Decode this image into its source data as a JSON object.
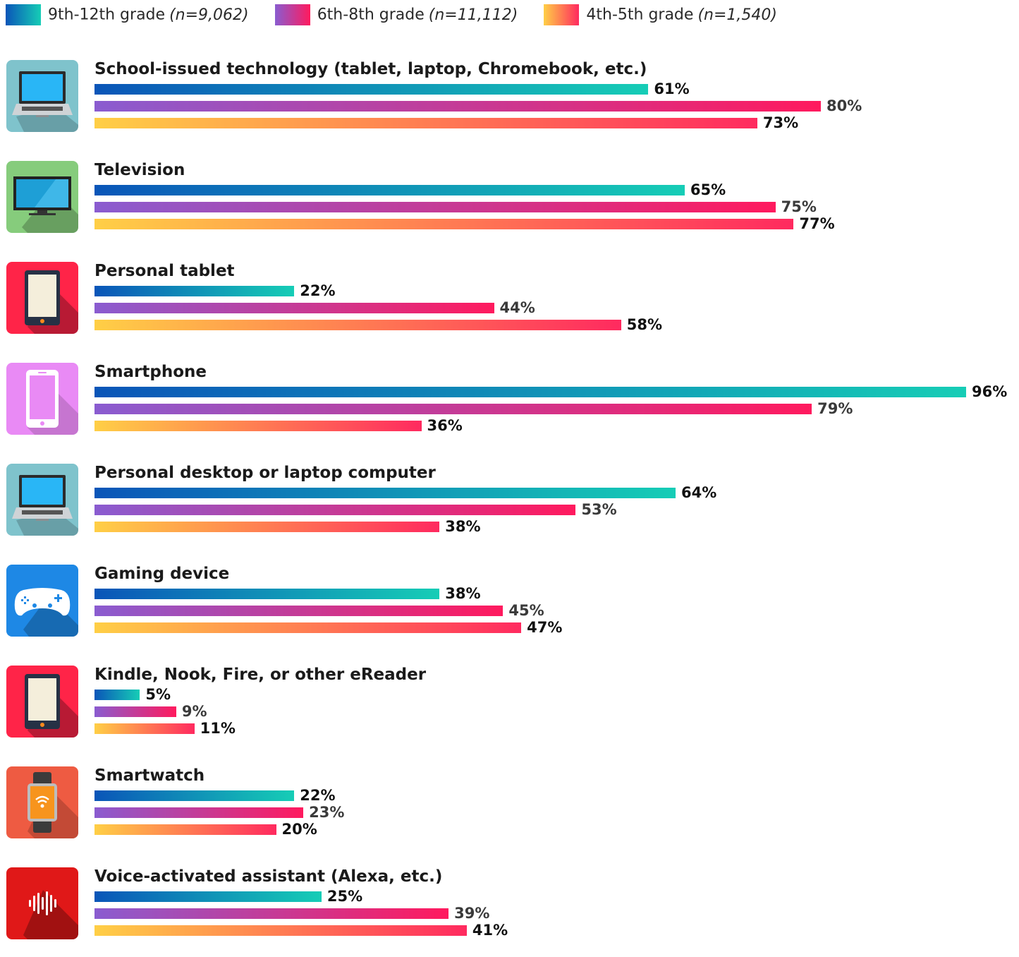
{
  "chart_data": {
    "type": "bar",
    "orientation": "horizontal",
    "categories": [
      "School-issued technology (tablet, laptop, Chromebook, etc.)",
      "Television",
      "Personal tablet",
      "Smartphone",
      "Personal desktop or laptop computer",
      "Gaming device",
      "Kindle, Nook, Fire, or other eReader",
      "Smartwatch",
      "Voice-activated assistant (Alexa, etc.)"
    ],
    "icons": [
      "laptop-icon",
      "television-icon",
      "tablet-icon",
      "smartphone-icon",
      "laptop-icon",
      "gamepad-icon",
      "ereader-icon",
      "smartwatch-icon",
      "voice-assistant-icon"
    ],
    "icon_colors": [
      "#7fc3cc",
      "#86cc7c",
      "#ff2448",
      "#e98af5",
      "#7fc3cc",
      "#1e88e5",
      "#ff2448",
      "#ee5b42",
      "#e01818"
    ],
    "series": [
      {
        "name": "9th-12th grade",
        "n": "(n=9,062)",
        "values": [
          61,
          65,
          22,
          96,
          64,
          38,
          5,
          22,
          25
        ],
        "labels": [
          "61%",
          "65%",
          "22%",
          "96%",
          "64%",
          "38%",
          "5%",
          "22%",
          "25%"
        ],
        "gradient": [
          "#0a55b8",
          "#16cdb6"
        ],
        "label_color": "#111111"
      },
      {
        "name": "6th-8th grade",
        "n": "(n=11,112)",
        "values": [
          80,
          75,
          44,
          79,
          53,
          45,
          9,
          23,
          39
        ],
        "labels": [
          "80%",
          "75%",
          "44%",
          "79%",
          "53%",
          "45%",
          "9%",
          "23%",
          "39%"
        ],
        "gradient": [
          "#8a5cd0",
          "#ff1a5e"
        ],
        "label_color": "#3a3a3a"
      },
      {
        "name": "4th-5th grade",
        "n": "(n=1,540)",
        "values": [
          73,
          77,
          58,
          36,
          38,
          47,
          11,
          20,
          41
        ],
        "labels": [
          "73%",
          "77%",
          "58%",
          "36%",
          "38%",
          "47%",
          "11%",
          "20%",
          "41%"
        ],
        "gradient": [
          "#ffcf46",
          "#ff2a5f"
        ],
        "label_color": "#111111"
      }
    ],
    "legend_position": "top",
    "grid": false,
    "xlim": [
      0,
      100
    ]
  }
}
